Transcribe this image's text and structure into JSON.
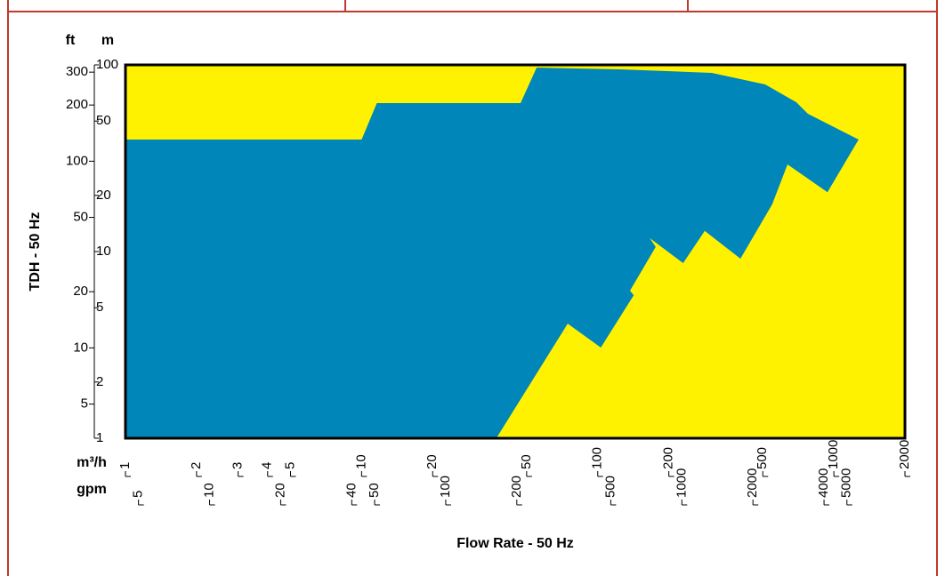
{
  "chart_data": {
    "type": "area",
    "x_label": "Flow Rate - 50 Hz",
    "y_label": "TDH - 50 Hz",
    "x_unit": "m³/h",
    "x2_unit": "gpm",
    "y_unit": "m",
    "y2_unit": "ft",
    "log_x": true,
    "log_y": true,
    "xlim": [
      1,
      2000
    ],
    "xticks": [
      1,
      2,
      3,
      4,
      5,
      10,
      20,
      50,
      100,
      200,
      500,
      1000,
      2000
    ],
    "x2lim": [
      4.403,
      8806
    ],
    "x2ticks": [
      5,
      10,
      20,
      40,
      50,
      100,
      200,
      500,
      1000,
      2000,
      4000,
      5000
    ],
    "ylim": [
      1,
      100
    ],
    "yticks": [
      1,
      2,
      5,
      10,
      20,
      50,
      100
    ],
    "y2lim": [
      3.281,
      328.1
    ],
    "y2ticks": [
      5,
      10,
      20,
      50,
      100,
      200,
      300
    ],
    "background_color": "#fff200",
    "series": [
      {
        "color": "#0086b8",
        "x": [
          1,
          1,
          10.0,
          11.6,
          47.1,
          55.1,
          127.7,
          304,
          512,
          693,
          776,
          1273,
          939,
          636,
          548,
          402,
          284,
          230,
          166,
          176,
          137,
          142,
          103,
          74.6,
          37.2
        ],
        "values": [
          1,
          39.8,
          39.8,
          62.4,
          62.4,
          96.8,
          94.6,
          90.6,
          78.6,
          63.1,
          54.7,
          39.8,
          20.8,
          29.3,
          17.9,
          9.16,
          12.9,
          8.67,
          11.8,
          10.6,
          6.17,
          5.84,
          3.06,
          4.11,
          1
        ]
      }
    ]
  }
}
